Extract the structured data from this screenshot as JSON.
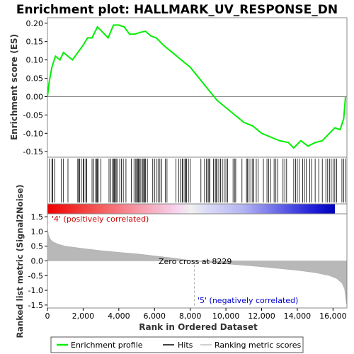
{
  "chart_data": [
    {
      "type": "line",
      "title": "Enrichment plot: HALLMARK_UV_RESPONSE_DN",
      "ylabel": "Enrichment score (ES)",
      "xlim": [
        0,
        16780
      ],
      "ylim": [
        -0.165,
        0.215
      ],
      "yticks": [
        0.2,
        0.15,
        0.1,
        0.05,
        0.0,
        -0.05,
        -0.1,
        -0.15
      ],
      "ytick_labels": [
        "0.20",
        "0.15",
        "0.10",
        "0.05",
        "0.00",
        "-0.05",
        "-0.10",
        "-0.15"
      ],
      "series": [
        {
          "name": "Enrichment profile",
          "color": "#00ee00",
          "x": [
            0,
            100,
            250,
            450,
            700,
            900,
            1150,
            1400,
            1700,
            2000,
            2250,
            2500,
            2800,
            3100,
            3400,
            3700,
            4000,
            4300,
            4600,
            4900,
            5200,
            5500,
            5800,
            6100,
            6500,
            7000,
            7500,
            8000,
            8500,
            9000,
            9500,
            10000,
            10500,
            11000,
            11500,
            12000,
            12500,
            13000,
            13500,
            13800,
            14200,
            14600,
            15000,
            15400,
            15800,
            16100,
            16400,
            16600,
            16700
          ],
          "y": [
            0.0,
            0.04,
            0.08,
            0.11,
            0.1,
            0.12,
            0.11,
            0.1,
            0.12,
            0.14,
            0.16,
            0.16,
            0.19,
            0.175,
            0.16,
            0.195,
            0.195,
            0.19,
            0.17,
            0.17,
            0.175,
            0.178,
            0.165,
            0.16,
            0.14,
            0.12,
            0.1,
            0.08,
            0.05,
            0.02,
            -0.01,
            -0.03,
            -0.05,
            -0.07,
            -0.08,
            -0.1,
            -0.11,
            -0.12,
            -0.125,
            -0.14,
            -0.12,
            -0.135,
            -0.125,
            -0.12,
            -0.1,
            -0.085,
            -0.09,
            -0.06,
            0.0
          ]
        }
      ],
      "baseline": 0.0
    },
    {
      "type": "scatter",
      "name_hint": "Hits",
      "hits": [
        120,
        250,
        300,
        420,
        780,
        900,
        1150,
        1700,
        1750,
        1800,
        1900,
        2000,
        2050,
        2150,
        2200,
        2500,
        2600,
        2700,
        2750,
        2800,
        2850,
        3000,
        3450,
        3550,
        3650,
        3700,
        3750,
        3800,
        3850,
        3900,
        4050,
        4150,
        4250,
        4400,
        4700,
        4850,
        4950,
        5000,
        5050,
        5100,
        5150,
        5200,
        5300,
        5350,
        5400,
        5450,
        5500,
        5600,
        5900,
        6000,
        6100,
        6200,
        6300,
        6400,
        6600,
        6700,
        7200,
        7350,
        7450,
        7550,
        7600,
        7700,
        7750,
        7800,
        7900,
        8000,
        8600,
        8800,
        8900,
        9000,
        9050,
        9100,
        9300,
        9400,
        9450,
        9500,
        9600,
        9700,
        9800,
        9900,
        10000,
        10100,
        10400,
        10500,
        10550,
        10900,
        11150,
        11200,
        11300,
        11400,
        11500,
        11550,
        11700,
        11800,
        12100,
        12300,
        12400,
        12500,
        12700,
        12800,
        12900,
        13200,
        13300,
        13400,
        13800,
        13900,
        14000,
        14100,
        14300,
        14400,
        14500,
        14700,
        14800,
        15000,
        15200,
        15400,
        15600,
        15700,
        15800,
        15900,
        16000,
        16100,
        16200,
        16500,
        16600,
        16700
      ]
    },
    {
      "type": "area",
      "ylabel": "Ranked list metric (Signal2Noise)",
      "xlabel": "Rank in Ordered Dataset",
      "xlim": [
        0,
        16780
      ],
      "ylim": [
        -1.6,
        1.6
      ],
      "xticks": [
        0,
        2000,
        4000,
        6000,
        8000,
        10000,
        12000,
        14000,
        16000
      ],
      "xtick_labels": [
        "0",
        "2,000",
        "4,000",
        "6,000",
        "8,000",
        "10,000",
        "12,000",
        "14,000",
        "16,000"
      ],
      "yticks": [
        1.5,
        1.0,
        0.5,
        0.0,
        -0.5,
        -1.0,
        -1.5
      ],
      "ytick_labels": [
        "1.5",
        "1.0",
        "0.5",
        "0.0",
        "-0.5",
        "-1.0",
        "-1.5"
      ],
      "x": [
        0,
        50,
        150,
        300,
        600,
        1000,
        2000,
        3000,
        4000,
        5000,
        6000,
        7000,
        8229,
        9000,
        10000,
        11000,
        12000,
        13000,
        14000,
        15000,
        15800,
        16200,
        16500,
        16650,
        16750
      ],
      "y": [
        1.2,
        0.9,
        0.75,
        0.65,
        0.57,
        0.5,
        0.42,
        0.35,
        0.29,
        0.24,
        0.17,
        0.1,
        0.0,
        -0.05,
        -0.1,
        -0.15,
        -0.2,
        -0.26,
        -0.32,
        -0.4,
        -0.5,
        -0.6,
        -0.75,
        -0.95,
        -1.45
      ],
      "annotations": {
        "positive": "'4' (positively correlated)",
        "zero_cross": "Zero cross at 8229",
        "negative": "'5' (negatively correlated)"
      },
      "zero_cross": 8229
    }
  ],
  "legend": {
    "items": [
      {
        "label": "Enrichment profile",
        "color": "#00ee00"
      },
      {
        "label": "Hits",
        "color": "#000000"
      },
      {
        "label": "Ranking metric scores",
        "color": "#c0c0c0"
      }
    ]
  },
  "colors": {
    "positive_annotation": "#cc0000",
    "negative_annotation": "#0000cc",
    "metric_fill": "#b8b8b8",
    "es_line": "#00ee00"
  }
}
